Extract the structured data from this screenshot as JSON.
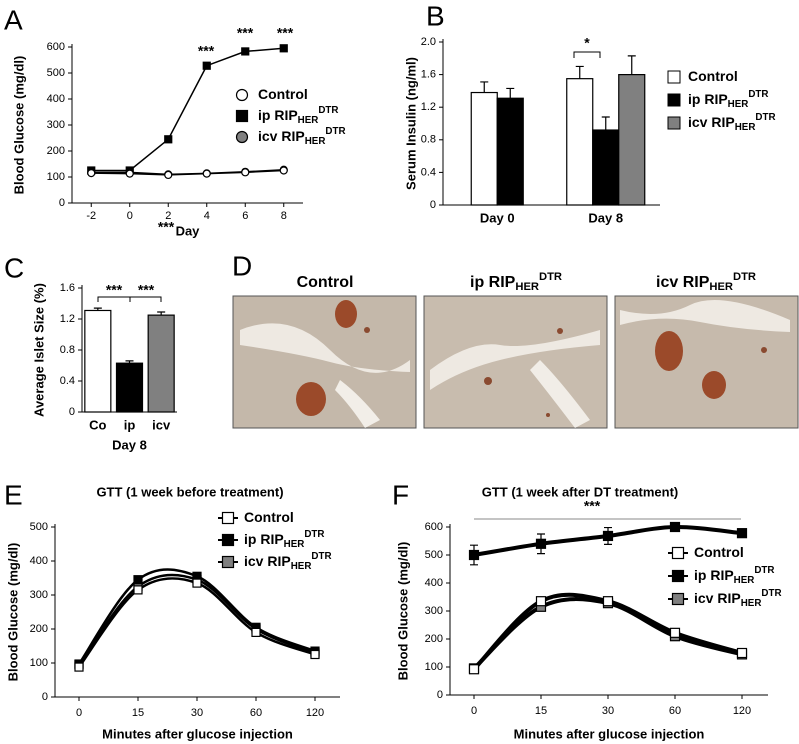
{
  "chart_data": [
    {
      "label": "A",
      "type": "line",
      "x_label": "Day",
      "y_label": "Blood Glucose (mg/dl)",
      "x": [
        -2,
        0,
        2,
        4,
        6,
        8
      ],
      "xlim": [
        -3,
        9
      ],
      "xticks": [
        -2,
        0,
        2,
        4,
        6,
        8
      ],
      "ylim": [
        0,
        600
      ],
      "yticks": [
        0,
        100,
        200,
        300,
        400,
        500,
        600
      ],
      "series": [
        {
          "name": "Control",
          "color": "#ffffff",
          "marker": "circle",
          "values": [
            115,
            113,
            108,
            113,
            118,
            125
          ]
        },
        {
          "name": "ip RIP",
          "name_sub": "HER",
          "name_sup": "DTR",
          "color": "#000000",
          "marker": "square",
          "values": [
            125,
            125,
            245,
            528,
            583,
            595
          ]
        },
        {
          "name": "icv RIP",
          "name_sub": "HER",
          "name_sup": "DTR",
          "color": "#808080",
          "marker": "circle",
          "values": [
            118,
            118,
            110,
            114,
            120,
            128
          ]
        }
      ],
      "annotations": [
        "***",
        "***",
        "***",
        "***"
      ]
    },
    {
      "label": "B",
      "type": "bar",
      "y_label": "Serum Insulin (ng/ml)",
      "categories": [
        "Day 0",
        "Day 8"
      ],
      "ylim": [
        0,
        2
      ],
      "yticks": [
        0,
        0.4,
        0.8,
        1.2,
        1.6,
        {
          "value": 2,
          "label": "2.0"
        }
      ],
      "series": [
        {
          "name": "Control",
          "color": "#ffffff",
          "values": [
            1.38,
            1.55
          ],
          "errors": [
            0.13,
            0.15
          ]
        },
        {
          "name": "ip RIP",
          "name_sub": "HER",
          "name_sup": "DTR",
          "color": "#000000",
          "values": [
            1.31,
            0.92
          ],
          "errors": [
            0.12,
            0.16
          ]
        },
        {
          "name": "icv RIP",
          "name_sub": "HER",
          "name_sup": "DTR",
          "color": "#808080",
          "values": [
            null,
            1.6
          ],
          "errors": [
            null,
            0.23
          ]
        }
      ],
      "annotations": [
        "*"
      ]
    },
    {
      "label": "C",
      "type": "bar",
      "y_label": "Average Islet Size (%)",
      "x_label": "Day 8",
      "categories": [
        "Co",
        "ip",
        "icv"
      ],
      "ylim": [
        0,
        1.6
      ],
      "yticks": [
        0,
        0.4,
        0.8,
        1.2,
        1.6
      ],
      "series": [
        {
          "colors": [
            "#ffffff",
            "#000000",
            "#808080"
          ],
          "values": [
            1.31,
            0.63,
            1.25
          ],
          "errors": [
            0.03,
            0.03,
            0.04
          ]
        }
      ],
      "annotations": [
        "***",
        "***"
      ]
    },
    {
      "label": "D",
      "type": "image",
      "titles": [
        {
          "name": "Control"
        },
        {
          "name": "ip RIP",
          "name_sub": "HER",
          "name_sup": "DTR"
        },
        {
          "name": "icv RIP",
          "name_sub": "HER",
          "name_sup": "DTR"
        }
      ]
    },
    {
      "label": "E",
      "type": "line",
      "smooth": true,
      "title": "GTT (1 week before treatment)",
      "x_label": "Minutes after glucose injection",
      "y_label": "Blood Glucose (mg/dl)",
      "categories": [
        "0",
        "15",
        "30",
        "60",
        "120"
      ],
      "ylim": [
        0,
        500
      ],
      "yticks": [
        0,
        100,
        200,
        300,
        400,
        500
      ],
      "series": [
        {
          "name": "Control",
          "color": "#ffffff",
          "marker": "square",
          "values": [
            88,
            315,
            335,
            190,
            125
          ]
        },
        {
          "name": "ip RIP",
          "name_sub": "HER",
          "name_sup": "DTR",
          "color": "#000000",
          "marker": "square",
          "values": [
            97,
            345,
            355,
            205,
            135
          ]
        },
        {
          "name": "icv RIP",
          "name_sub": "HER",
          "name_sup": "DTR",
          "color": "#808080",
          "marker": "square",
          "values": [
            95,
            325,
            345,
            200,
            130
          ]
        }
      ]
    },
    {
      "label": "F",
      "type": "line",
      "smooth": true,
      "title": "GTT (1 week after DT treatment)",
      "x_label": "Minutes after glucose injection",
      "y_label": "Blood Glucose (mg/dl)",
      "categories": [
        "0",
        "15",
        "30",
        "60",
        "120"
      ],
      "ylim": [
        0,
        600
      ],
      "yticks": [
        0,
        100,
        200,
        300,
        400,
        500,
        600
      ],
      "series": [
        {
          "name": "Control",
          "color": "#ffffff",
          "marker": "square",
          "values": [
            92,
            335,
            335,
            222,
            150
          ]
        },
        {
          "name": "ip RIP",
          "name_sub": "HER",
          "name_sup": "DTR",
          "color": "#000000",
          "marker": "square",
          "values": [
            500,
            540,
            568,
            600,
            578
          ],
          "errors": [
            35,
            35,
            30,
            8,
            10
          ]
        },
        {
          "name": "icv RIP",
          "name_sub": "HER",
          "name_sup": "DTR",
          "color": "#808080",
          "marker": "square",
          "values": [
            95,
            315,
            328,
            210,
            145
          ]
        }
      ],
      "annotations": [
        "***"
      ]
    }
  ]
}
